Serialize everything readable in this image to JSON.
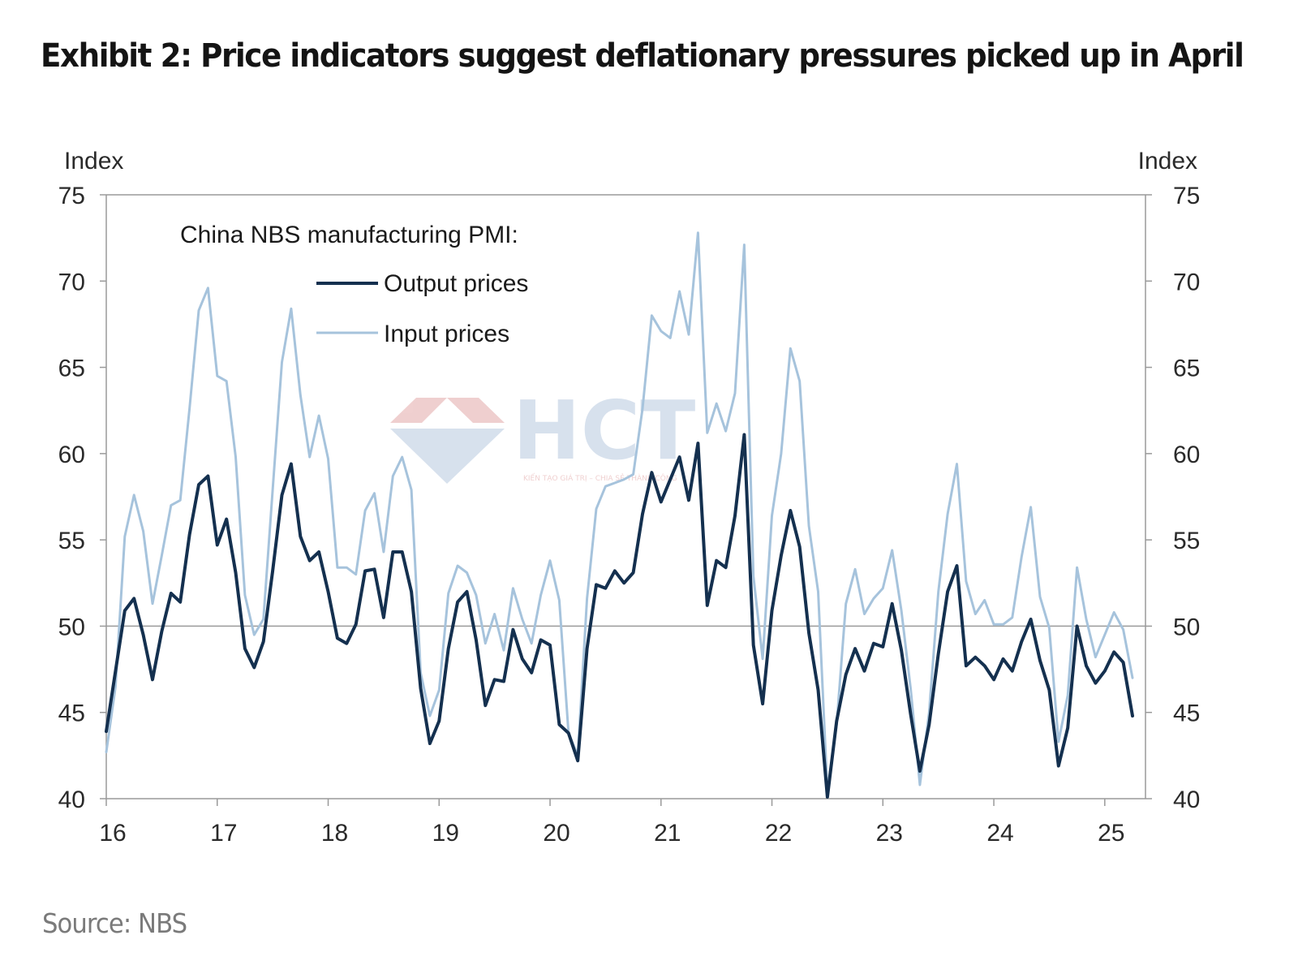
{
  "title": "Exhibit 2: Price indicators suggest deflationary pressures picked up in April",
  "source": "Source: NBS",
  "watermark": {
    "logo_text": "HCT",
    "tagline": "KIẾN TẠO GIÁ TRỊ – CHIA SẺ THÀNH CÔNG",
    "color": "#b8c9e0",
    "accent": "#e3a9a9"
  },
  "chart_data": {
    "type": "line",
    "ylabel_left": "Index",
    "ylabel_right": "Index",
    "ylim": [
      40,
      75
    ],
    "yticks": [
      40,
      45,
      50,
      55,
      60,
      65,
      70,
      75
    ],
    "xticks": [
      "16",
      "17",
      "18",
      "19",
      "20",
      "21",
      "22",
      "23",
      "24",
      "25"
    ],
    "reference_line": 50,
    "grid": false,
    "legend_title": "China NBS manufacturing PMI:",
    "legend_position": "top-left",
    "x_start": "2016-01",
    "x_end": "2025-04",
    "series": [
      {
        "name": "Output prices",
        "color": "#14304f",
        "values": [
          43.9,
          47.4,
          50.9,
          51.6,
          49.5,
          46.9,
          49.7,
          51.9,
          51.4,
          55.3,
          58.2,
          58.7,
          54.7,
          56.2,
          53.1,
          48.7,
          47.6,
          49.1,
          53.2,
          57.6,
          59.4,
          55.2,
          53.8,
          54.3,
          52.0,
          49.3,
          49.0,
          50.1,
          53.2,
          53.3,
          50.5,
          54.3,
          54.3,
          52.0,
          46.4,
          43.2,
          44.5,
          48.7,
          51.4,
          52.0,
          49.2,
          45.4,
          46.9,
          46.8,
          49.8,
          48.1,
          47.3,
          49.2,
          48.9,
          44.3,
          43.8,
          42.2,
          48.7,
          52.4,
          52.2,
          53.2,
          52.5,
          53.1,
          56.5,
          58.9,
          57.2,
          58.5,
          59.8,
          57.3,
          60.6,
          51.2,
          53.8,
          53.4,
          56.4,
          61.1,
          48.9,
          45.5,
          50.9,
          54.1,
          56.7,
          54.6,
          49.6,
          46.3,
          40.1,
          44.5,
          47.2,
          48.7,
          47.4,
          49.0,
          48.8,
          51.3,
          48.6,
          44.9,
          41.6,
          44.3,
          48.4,
          52.0,
          53.5,
          47.7,
          48.2,
          47.7,
          46.9,
          48.1,
          47.4,
          49.1,
          50.4,
          48.0,
          46.3,
          41.9,
          44.1,
          50.0,
          47.7,
          46.7,
          47.4,
          48.5,
          47.9,
          44.8
        ]
      },
      {
        "name": "Input prices",
        "color": "#a6c3dc",
        "values": [
          42.7,
          46.5,
          55.2,
          57.6,
          55.5,
          51.3,
          54.1,
          57.0,
          57.3,
          62.6,
          68.3,
          69.6,
          64.5,
          64.2,
          59.8,
          51.8,
          49.5,
          50.4,
          57.9,
          65.3,
          68.4,
          63.4,
          59.8,
          62.2,
          59.7,
          53.4,
          53.4,
          53.0,
          56.7,
          57.7,
          54.3,
          58.7,
          59.8,
          57.9,
          47.3,
          44.8,
          46.3,
          51.9,
          53.5,
          53.1,
          51.8,
          49.0,
          50.7,
          48.6,
          52.2,
          50.4,
          49.0,
          51.8,
          53.8,
          51.5,
          43.8,
          42.5,
          51.6,
          56.8,
          58.1,
          58.3,
          58.5,
          58.8,
          62.6,
          68.0,
          67.1,
          66.7,
          69.4,
          66.9,
          72.8,
          61.2,
          62.9,
          61.3,
          63.5,
          72.1,
          52.9,
          48.1,
          56.4,
          60.0,
          66.1,
          64.2,
          55.8,
          52.0,
          40.4,
          44.3,
          51.3,
          53.3,
          50.7,
          51.6,
          52.2,
          54.4,
          50.9,
          46.4,
          40.8,
          45.0,
          52.0,
          56.5,
          59.4,
          52.6,
          50.7,
          51.5,
          50.1,
          50.1,
          50.5,
          54.0,
          56.9,
          51.7,
          49.9,
          43.3,
          46.0,
          53.4,
          50.4,
          48.2,
          49.5,
          50.8,
          49.8,
          47.0
        ]
      }
    ]
  }
}
